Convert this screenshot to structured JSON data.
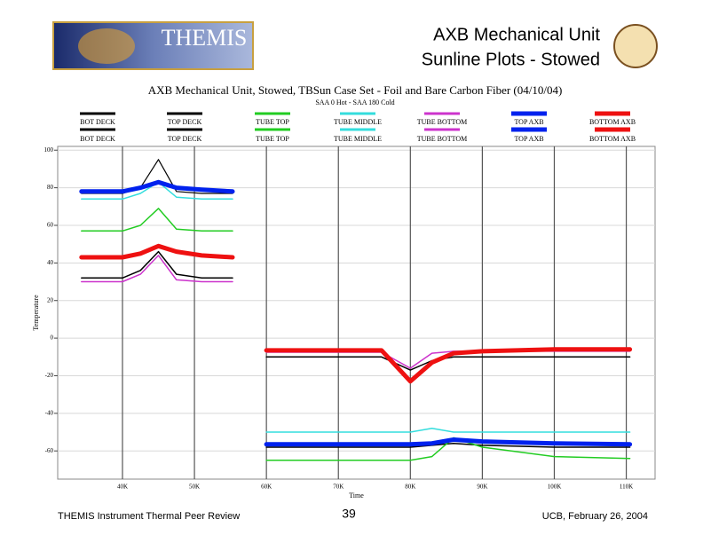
{
  "header": {
    "logo_text": "THEMIS",
    "title_lines": [
      "AXB Mechanical Unit",
      "Sunline Plots - Stowed"
    ]
  },
  "chart_data": {
    "type": "line",
    "title": "AXB Mechanical Unit, Stowed, TBSun Case Set - Foil and Bare Carbon Fiber  (04/10/04)",
    "subtitle": "SAA 0 Hot - SAA 180 Cold",
    "xlabel": "Time",
    "ylabel": "Temperature",
    "xlim": [
      31000,
      114000
    ],
    "ylim": [
      -75,
      102
    ],
    "xticks": [
      {
        "value": 40000,
        "label": "40K"
      },
      {
        "value": 50000,
        "label": "50K"
      },
      {
        "value": 60000,
        "label": "60K"
      },
      {
        "value": 70000,
        "label": "70K"
      },
      {
        "value": 80000,
        "label": "80K"
      },
      {
        "value": 90000,
        "label": "90K"
      },
      {
        "value": 100000,
        "label": "100K"
      },
      {
        "value": 110000,
        "label": "110K"
      }
    ],
    "yticks": [
      100,
      80,
      60,
      40,
      20,
      0,
      -20,
      -40,
      -60
    ],
    "grid": true,
    "series": [
      {
        "name": "BOT DECK",
        "color": "#000000",
        "width": 1.2,
        "x": [
          34300,
          40000,
          42500,
          45000,
          47500,
          51000,
          55300
        ],
        "values": [
          77,
          77,
          80,
          95,
          78,
          77,
          77
        ]
      },
      {
        "name": "TOP DECK",
        "color": "#000000",
        "width": 1.5,
        "x": [
          34300,
          40000,
          42500,
          45000,
          47500,
          51000,
          55300
        ],
        "values": [
          32,
          32,
          36,
          46,
          34,
          32,
          32
        ]
      },
      {
        "name": "TUBE TOP",
        "color": "#22cc22",
        "width": 1.5,
        "x": [
          34300,
          40000,
          42500,
          45000,
          47500,
          51000,
          55300
        ],
        "values": [
          57,
          57,
          60,
          69,
          58,
          57,
          57
        ]
      },
      {
        "name": "TUBE MIDDLE",
        "color": "#33dddd",
        "width": 1.5,
        "x": [
          34300,
          40000,
          42500,
          45000,
          47500,
          51000,
          55300
        ],
        "values": [
          74,
          74,
          77,
          83,
          75,
          74,
          74
        ]
      },
      {
        "name": "TUBE BOTTOM",
        "color": "#cc33cc",
        "width": 1.5,
        "x": [
          34300,
          40000,
          42500,
          45000,
          47500,
          51000,
          55300
        ],
        "values": [
          30,
          30,
          34,
          44,
          31,
          30,
          30
        ]
      },
      {
        "name": "TOP AXB",
        "color": "#0022ee",
        "width": 5,
        "x": [
          34300,
          40000,
          42500,
          45000,
          47500,
          51000,
          55300
        ],
        "values": [
          78,
          78,
          80,
          83,
          80,
          79,
          78
        ]
      },
      {
        "name": "BOTTOM AXB",
        "color": "#ee1111",
        "width": 5,
        "x": [
          34300,
          40000,
          42500,
          45000,
          47500,
          51000,
          55300
        ],
        "values": [
          43,
          43,
          45,
          49,
          46,
          44,
          43
        ]
      },
      {
        "name": "BOT DECK",
        "color": "#000000",
        "width": 1.5,
        "x": [
          60000,
          73000,
          76000,
          80000,
          83000,
          86000,
          90000,
          100000,
          110500
        ],
        "values": [
          -10,
          -10,
          -10,
          -17,
          -12,
          -10,
          -10,
          -10,
          -10
        ]
      },
      {
        "name": "TOP DECK",
        "color": "#000000",
        "width": 1.5,
        "x": [
          60000,
          73000,
          76000,
          80000,
          83000,
          86000,
          90000,
          100000,
          110500
        ],
        "values": [
          -58,
          -58,
          -58,
          -58,
          -57,
          -56,
          -57,
          -58,
          -58
        ]
      },
      {
        "name": "TUBE TOP",
        "color": "#22cc22",
        "width": 1.5,
        "x": [
          60000,
          73000,
          76000,
          80000,
          83000,
          86000,
          90000,
          100000,
          110500
        ],
        "values": [
          -65,
          -65,
          -65,
          -65,
          -63,
          -53,
          -58,
          -63,
          -64
        ]
      },
      {
        "name": "TUBE MIDDLE",
        "color": "#33dddd",
        "width": 1.5,
        "x": [
          60000,
          73000,
          76000,
          80000,
          83000,
          86000,
          90000,
          100000,
          110500
        ],
        "values": [
          -50,
          -50,
          -50,
          -50,
          -48,
          -50,
          -50,
          -50,
          -50
        ]
      },
      {
        "name": "TUBE BOTTOM",
        "color": "#cc33cc",
        "width": 1.5,
        "x": [
          60000,
          73000,
          76000,
          80000,
          83000,
          86000,
          90000,
          100000,
          110500
        ],
        "values": [
          -7.5,
          -7.5,
          -7.5,
          -16,
          -8,
          -7,
          -7,
          -7,
          -7
        ]
      },
      {
        "name": "TOP AXB",
        "color": "#0022ee",
        "width": 5,
        "x": [
          60000,
          73000,
          76000,
          80000,
          83000,
          86000,
          90000,
          100000,
          110500
        ],
        "values": [
          -56.5,
          -56.5,
          -56.5,
          -56.5,
          -56,
          -54,
          -55,
          -56,
          -56.5
        ]
      },
      {
        "name": "BOTTOM AXB",
        "color": "#ee1111",
        "width": 5,
        "x": [
          60000,
          73000,
          76000,
          80000,
          83000,
          86000,
          90000,
          100000,
          110500
        ],
        "values": [
          -6.5,
          -6.5,
          -6.5,
          -23,
          -13,
          -8,
          -7,
          -6,
          -6
        ]
      }
    ]
  },
  "footer": {
    "left": "THEMIS Instrument Thermal Peer Review",
    "page": "39",
    "right": "UCB, February 26, 2004"
  }
}
